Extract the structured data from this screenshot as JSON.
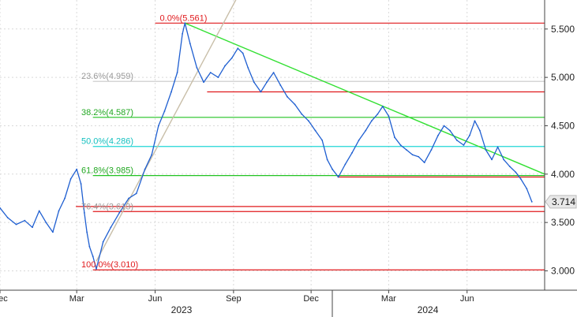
{
  "chart_data": {
    "type": "line",
    "title": "",
    "xlabel": "",
    "ylabel": "",
    "ylim": [
      2.8,
      5.8
    ],
    "x_range": [
      "2022-12-01",
      "2024-08-31"
    ],
    "y_ticks": [
      "3.000",
      "3.500",
      "4.000",
      "4.500",
      "5.000",
      "5.500"
    ],
    "x_ticks": [
      {
        "label": "Dec",
        "date": "2022-12-01"
      },
      {
        "label": "Mar",
        "date": "2023-03-01"
      },
      {
        "label": "Jun",
        "date": "2023-06-01"
      },
      {
        "label": "Sep",
        "date": "2023-09-01"
      },
      {
        "label": "Dec",
        "date": "2023-12-01"
      },
      {
        "label": "Mar",
        "date": "2024-03-01"
      },
      {
        "label": "Jun",
        "date": "2024-06-01"
      }
    ],
    "years": [
      {
        "label": "2023",
        "date": "2023-07-02"
      },
      {
        "label": "2024",
        "date": "2024-04-16"
      }
    ],
    "last_value": {
      "label": "3.714",
      "value": 3.714
    },
    "series": [
      {
        "color": "#1f5fd1",
        "points": [
          [
            "2022-12-01",
            3.65
          ],
          [
            "2022-12-10",
            3.55
          ],
          [
            "2022-12-20",
            3.48
          ],
          [
            "2022-12-30",
            3.52
          ],
          [
            "2023-01-08",
            3.45
          ],
          [
            "2023-01-16",
            3.62
          ],
          [
            "2023-01-24",
            3.5
          ],
          [
            "2023-02-01",
            3.4
          ],
          [
            "2023-02-08",
            3.62
          ],
          [
            "2023-02-15",
            3.75
          ],
          [
            "2023-02-22",
            3.95
          ],
          [
            "2023-03-01",
            4.05
          ],
          [
            "2023-03-06",
            3.9
          ],
          [
            "2023-03-10",
            3.6
          ],
          [
            "2023-03-13",
            3.4
          ],
          [
            "2023-03-16",
            3.25
          ],
          [
            "2023-03-20",
            3.15
          ],
          [
            "2023-03-24",
            3.02
          ],
          [
            "2023-04-01",
            3.3
          ],
          [
            "2023-04-10",
            3.45
          ],
          [
            "2023-04-20",
            3.6
          ],
          [
            "2023-05-01",
            3.75
          ],
          [
            "2023-05-10",
            3.8
          ],
          [
            "2023-05-20",
            4.05
          ],
          [
            "2023-05-28",
            4.2
          ],
          [
            "2023-06-05",
            4.5
          ],
          [
            "2023-06-12",
            4.65
          ],
          [
            "2023-06-20",
            4.85
          ],
          [
            "2023-06-27",
            5.05
          ],
          [
            "2023-07-03",
            5.45
          ],
          [
            "2023-07-06",
            5.561
          ],
          [
            "2023-07-12",
            5.35
          ],
          [
            "2023-07-20",
            5.1
          ],
          [
            "2023-07-28",
            4.95
          ],
          [
            "2023-08-05",
            5.05
          ],
          [
            "2023-08-14",
            5.0
          ],
          [
            "2023-08-22",
            5.12
          ],
          [
            "2023-08-30",
            5.2
          ],
          [
            "2023-09-06",
            5.3
          ],
          [
            "2023-09-12",
            5.25
          ],
          [
            "2023-09-18",
            5.1
          ],
          [
            "2023-09-25",
            4.95
          ],
          [
            "2023-10-03",
            4.85
          ],
          [
            "2023-10-10",
            4.95
          ],
          [
            "2023-10-18",
            5.05
          ],
          [
            "2023-10-26",
            4.92
          ],
          [
            "2023-11-03",
            4.8
          ],
          [
            "2023-11-12",
            4.72
          ],
          [
            "2023-11-20",
            4.62
          ],
          [
            "2023-11-28",
            4.55
          ],
          [
            "2023-12-06",
            4.45
          ],
          [
            "2023-12-14",
            4.35
          ],
          [
            "2023-12-20",
            4.15
          ],
          [
            "2023-12-26",
            4.05
          ],
          [
            "2024-01-02",
            3.97
          ],
          [
            "2024-01-10",
            4.1
          ],
          [
            "2024-01-18",
            4.22
          ],
          [
            "2024-01-26",
            4.35
          ],
          [
            "2024-02-03",
            4.45
          ],
          [
            "2024-02-10",
            4.55
          ],
          [
            "2024-02-17",
            4.62
          ],
          [
            "2024-02-23",
            4.7
          ],
          [
            "2024-03-01",
            4.6
          ],
          [
            "2024-03-08",
            4.38
          ],
          [
            "2024-03-15",
            4.3
          ],
          [
            "2024-03-22",
            4.25
          ],
          [
            "2024-03-29",
            4.2
          ],
          [
            "2024-04-05",
            4.18
          ],
          [
            "2024-04-12",
            4.12
          ],
          [
            "2024-04-20",
            4.25
          ],
          [
            "2024-04-28",
            4.4
          ],
          [
            "2024-05-05",
            4.5
          ],
          [
            "2024-05-12",
            4.45
          ],
          [
            "2024-05-20",
            4.35
          ],
          [
            "2024-05-28",
            4.3
          ],
          [
            "2024-06-04",
            4.4
          ],
          [
            "2024-06-10",
            4.55
          ],
          [
            "2024-06-16",
            4.45
          ],
          [
            "2024-06-23",
            4.25
          ],
          [
            "2024-06-30",
            4.15
          ],
          [
            "2024-07-07",
            4.28
          ],
          [
            "2024-07-14",
            4.15
          ],
          [
            "2024-07-21",
            4.08
          ],
          [
            "2024-07-28",
            4.02
          ],
          [
            "2024-08-03",
            3.95
          ],
          [
            "2024-08-10",
            3.85
          ],
          [
            "2024-08-16",
            3.714
          ]
        ]
      }
    ],
    "fibonacci": [
      {
        "label": "0.0%(5.561)",
        "value": 5.561,
        "color": "#e0191c",
        "label_color": "#e0191c",
        "start": "2023-06-01"
      },
      {
        "label": "23.6%(4.959)",
        "value": 4.959,
        "color": "#c9c9c9",
        "label_color": "#9a9a9a",
        "start": "2023-03-20"
      },
      {
        "label": "38.2%(4.587)",
        "value": 4.587,
        "color": "#22c322",
        "label_color": "#22a822",
        "start": "2023-03-20"
      },
      {
        "label": "50.0%(4.286)",
        "value": 4.286,
        "color": "#1fd6d6",
        "label_color": "#14c0c0",
        "start": "2023-03-20"
      },
      {
        "label": "61.8%(3.985)",
        "value": 3.985,
        "color": "#22c322",
        "label_color": "#22a822",
        "start": "2023-03-20"
      },
      {
        "label": "76.4%(3.613)",
        "value": 3.613,
        "color": "#e0191c",
        "label_color": "#9a9a9a",
        "start": "2023-03-20"
      },
      {
        "label": "100.0%(3.010)",
        "value": 3.01,
        "color": "#e0191c",
        "label_color": "#e0191c",
        "start": "2023-03-20"
      }
    ],
    "horizontal_lines": [
      {
        "value": 4.85,
        "color": "#e0191c",
        "start": "2023-08-01"
      },
      {
        "value": 3.97,
        "color": "#e0191c",
        "start": "2024-01-01"
      },
      {
        "value": 3.665,
        "color": "#e0191c",
        "start": "2023-02-28"
      }
    ],
    "trendlines": [
      {
        "color": "#33e033",
        "from": [
          "2023-07-06",
          5.561
        ],
        "to": [
          "2024-08-31",
          4.0
        ]
      },
      {
        "color": "#c8bea8",
        "from": [
          "2023-03-24",
          3.1
        ],
        "to": [
          "2023-10-10",
          6.4
        ]
      }
    ]
  }
}
